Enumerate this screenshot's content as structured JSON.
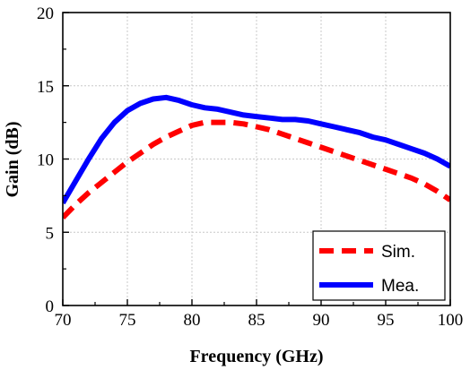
{
  "chart_data": {
    "type": "line",
    "xlabel": "Frequency (GHz)",
    "ylabel": "Gain (dB)",
    "xlim": [
      70,
      100
    ],
    "ylim": [
      0,
      20
    ],
    "xticks": [
      70,
      75,
      80,
      85,
      90,
      95,
      100
    ],
    "yticks": [
      0,
      5,
      10,
      15,
      20
    ],
    "grid": true,
    "legend_position": "bottom-right",
    "series": [
      {
        "name": "Sim.",
        "style": "dashed",
        "color": "#ff0000",
        "x": [
          70,
          71,
          72,
          73,
          74,
          75,
          76,
          77,
          78,
          79,
          80,
          81,
          82,
          83,
          84,
          85,
          86,
          87,
          88,
          89,
          90,
          91,
          92,
          93,
          94,
          95,
          96,
          97,
          98,
          99,
          100
        ],
        "y": [
          6.0,
          6.9,
          7.7,
          8.4,
          9.1,
          9.8,
          10.4,
          11.0,
          11.5,
          11.9,
          12.3,
          12.5,
          12.5,
          12.5,
          12.4,
          12.2,
          12.0,
          11.7,
          11.4,
          11.1,
          10.8,
          10.5,
          10.2,
          9.9,
          9.6,
          9.3,
          9.0,
          8.7,
          8.3,
          7.8,
          7.2
        ]
      },
      {
        "name": "Mea.",
        "style": "solid",
        "color": "#0000ff",
        "x": [
          70,
          71,
          72,
          73,
          74,
          75,
          76,
          77,
          78,
          79,
          80,
          81,
          82,
          83,
          84,
          85,
          86,
          87,
          88,
          89,
          90,
          91,
          92,
          93,
          94,
          95,
          96,
          97,
          98,
          99,
          100
        ],
        "y": [
          7.0,
          8.5,
          10.0,
          11.4,
          12.5,
          13.3,
          13.8,
          14.1,
          14.2,
          14.0,
          13.7,
          13.5,
          13.4,
          13.2,
          13.0,
          12.9,
          12.8,
          12.7,
          12.7,
          12.6,
          12.4,
          12.2,
          12.0,
          11.8,
          11.5,
          11.3,
          11.0,
          10.7,
          10.4,
          10.0,
          9.5
        ]
      }
    ]
  }
}
